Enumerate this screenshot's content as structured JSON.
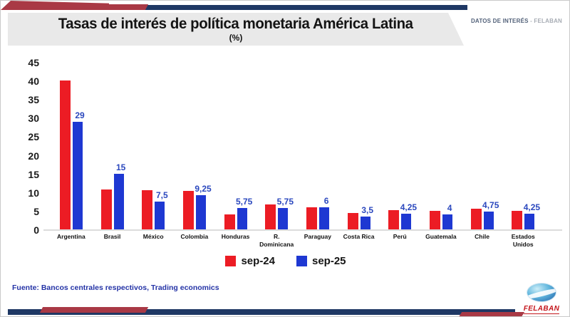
{
  "header": {
    "title": "Tasas de interés de política monetaria América Latina",
    "subtitle": "(%)",
    "corner_note": {
      "left": "DATOS DE INTERÉS",
      "separator": "-",
      "right": "FELABAN"
    }
  },
  "chart_data": {
    "type": "bar",
    "title": "Tasas de interés de política monetaria América Latina (%)",
    "categories": [
      "Argentina",
      "Brasil",
      "México",
      "Colombia",
      "Honduras",
      "R. Dominicana",
      "Paraguay",
      "Costa Rica",
      "Perú",
      "Guatemala",
      "Chile",
      "Estados Unidos"
    ],
    "series": [
      {
        "name": "sep-24",
        "color": "#EC1C24",
        "values": [
          40,
          10.75,
          10.5,
          10.25,
          4,
          6.75,
          6,
          4.5,
          5.25,
          5,
          5.5,
          5
        ]
      },
      {
        "name": "sep-25",
        "color": "#1E38D2",
        "values": [
          29,
          15,
          7.5,
          9.25,
          5.75,
          5.75,
          6,
          3.5,
          4.25,
          4,
          4.75,
          4.25
        ],
        "labels": [
          "29",
          "15",
          "7,5",
          "9,25",
          "5,75",
          "5,75",
          "6",
          "3,5",
          "4,25",
          "4",
          "4,75",
          "4,25"
        ]
      }
    ],
    "ylabel": "",
    "xlabel": "",
    "ylim": [
      0,
      45
    ],
    "yticks": [
      0,
      5,
      10,
      15,
      20,
      25,
      30,
      35,
      40,
      45
    ],
    "grid": false,
    "legend_position": "bottom",
    "value_labels_note": "only sep-25 (blue) bars carry labels, comma decimal separator"
  },
  "footer": {
    "source": "Fuente: Bancos centrales respectivos, Trading economics",
    "logo_text": "FELABAN"
  }
}
